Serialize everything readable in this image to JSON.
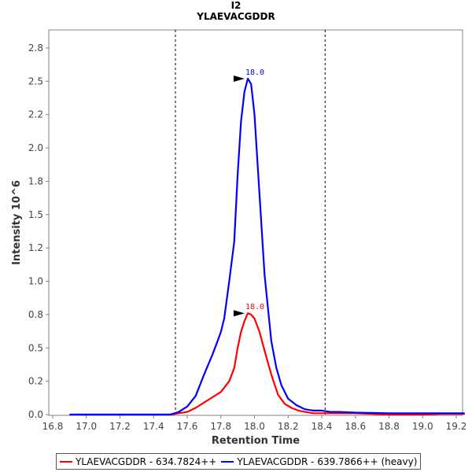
{
  "chart_data": {
    "type": "line",
    "title": "I2",
    "subtitle": "YLAEVACGDDR",
    "xlabel": "Retention Time",
    "ylabel": "Intensity 10^6",
    "xlim": [
      16.8,
      19.3
    ],
    "ylim": [
      0.0,
      2.9
    ],
    "x_ticks": [
      "16.8",
      "17.0",
      "17.2",
      "17.4",
      "17.6",
      "17.8",
      "18.0",
      "18.2",
      "18.4",
      "18.6",
      "18.8",
      "19.0",
      "19.2"
    ],
    "y_ticks": [
      "0.0",
      "0.2",
      "0.5",
      "0.8",
      "1.0",
      "1.2",
      "1.5",
      "1.8",
      "2.0",
      "2.2",
      "2.5",
      "2.8"
    ],
    "boundaries": [
      17.53,
      18.42
    ],
    "grid": false,
    "legend_position": "bottom",
    "series": [
      {
        "name": "YLAEVACGDDR - 634.7824++",
        "color": "#ff0000",
        "peak_label": "18.0",
        "peak": [
          17.96,
          0.76
        ],
        "x": [
          16.9,
          17.1,
          17.3,
          17.5,
          17.55,
          17.6,
          17.65,
          17.7,
          17.75,
          17.8,
          17.85,
          17.88,
          17.9,
          17.92,
          17.94,
          17.96,
          17.98,
          18.0,
          18.03,
          18.06,
          18.1,
          18.14,
          18.18,
          18.22,
          18.26,
          18.3,
          18.35,
          18.4,
          18.5,
          18.6,
          18.8,
          19.0,
          19.1,
          19.25
        ],
        "y": [
          0.0,
          0.0,
          0.0,
          0.0,
          0.01,
          0.02,
          0.05,
          0.09,
          0.13,
          0.17,
          0.25,
          0.35,
          0.5,
          0.62,
          0.7,
          0.76,
          0.75,
          0.72,
          0.62,
          0.48,
          0.3,
          0.15,
          0.08,
          0.05,
          0.03,
          0.02,
          0.01,
          0.01,
          0.01,
          0.01,
          0.0,
          0.0,
          0.005,
          0.005
        ]
      },
      {
        "name": "YLAEVACGDDR - 639.7866++ (heavy)",
        "color": "#0000ff",
        "peak_label": "18.0",
        "peak": [
          17.96,
          2.52
        ],
        "x": [
          16.9,
          17.1,
          17.3,
          17.5,
          17.55,
          17.6,
          17.65,
          17.7,
          17.75,
          17.78,
          17.8,
          17.82,
          17.85,
          17.88,
          17.9,
          17.92,
          17.94,
          17.96,
          17.98,
          18.0,
          18.03,
          18.06,
          18.1,
          18.13,
          18.16,
          18.2,
          18.25,
          18.3,
          18.35,
          18.4,
          18.45,
          18.5,
          18.6,
          18.8,
          19.0,
          19.25
        ],
        "y": [
          0.0,
          0.0,
          0.0,
          0.0,
          0.02,
          0.06,
          0.14,
          0.3,
          0.45,
          0.55,
          0.62,
          0.72,
          1.0,
          1.3,
          1.8,
          2.2,
          2.42,
          2.52,
          2.48,
          2.25,
          1.65,
          1.05,
          0.55,
          0.35,
          0.22,
          0.12,
          0.07,
          0.04,
          0.03,
          0.03,
          0.02,
          0.02,
          0.015,
          0.01,
          0.01,
          0.01
        ]
      }
    ]
  },
  "legend": {
    "items": [
      {
        "label": "YLAEVACGDDR - 634.7824++",
        "color": "#ff0000"
      },
      {
        "label": "YLAEVACGDDR - 639.7866++ (heavy)",
        "color": "#0000ff"
      }
    ]
  }
}
